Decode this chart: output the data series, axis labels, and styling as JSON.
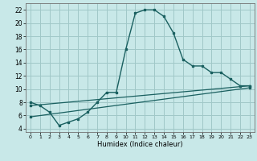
{
  "xlabel": "Humidex (Indice chaleur)",
  "bg_color": "#c8e8e8",
  "grid_color": "#a0c8c8",
  "line_color": "#1a6060",
  "xlim": [
    -0.5,
    23.5
  ],
  "ylim": [
    3.5,
    23.0
  ],
  "xticks": [
    0,
    1,
    2,
    3,
    4,
    5,
    6,
    7,
    8,
    9,
    10,
    11,
    12,
    13,
    14,
    15,
    16,
    17,
    18,
    19,
    20,
    21,
    22,
    23
  ],
  "yticks": [
    4,
    6,
    8,
    10,
    12,
    14,
    16,
    18,
    20,
    22
  ],
  "curve1_x": [
    0,
    1,
    2,
    3,
    4,
    5,
    6,
    7,
    8,
    9,
    10,
    11,
    12,
    13,
    14,
    15,
    16,
    17,
    18,
    19,
    20,
    21,
    22,
    23
  ],
  "curve1_y": [
    8,
    7.5,
    6.5,
    4.5,
    5.0,
    5.5,
    6.5,
    8.0,
    9.5,
    9.5,
    16.0,
    21.5,
    22.0,
    22.0,
    21.0,
    18.5,
    14.5,
    13.5,
    13.5,
    12.5,
    12.5,
    11.5,
    10.5,
    10.5
  ],
  "curve2_x": [
    0,
    23
  ],
  "curve2_y": [
    7.5,
    10.5
  ],
  "curve3_x": [
    0,
    23
  ],
  "curve3_y": [
    5.8,
    10.2
  ]
}
